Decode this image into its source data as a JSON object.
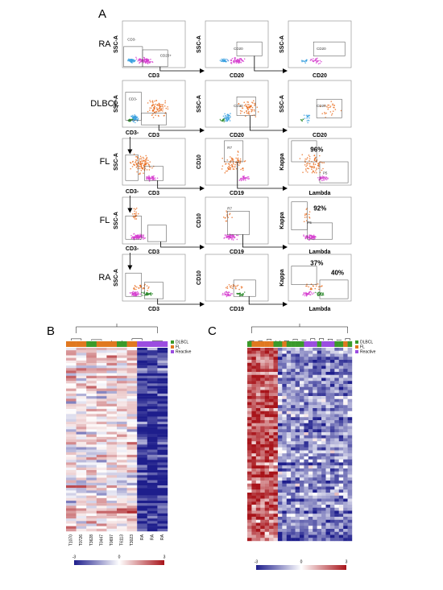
{
  "figure": {
    "panel_a": {
      "label": "A",
      "rows": [
        {
          "label": "RA",
          "plots": [
            {
              "y_axis": "SSC-A",
              "x_axis": "CD3",
              "notes": [
                "CD3-",
                "CD20+"
              ]
            },
            {
              "y_axis": "SSC-A",
              "x_axis": "CD20",
              "notes": [
                "CD20"
              ]
            },
            {
              "y_axis": "SSC-A",
              "x_axis": "CD20",
              "notes": [
                "CD20"
              ]
            }
          ]
        },
        {
          "label": "DLBCL",
          "plots": [
            {
              "y_axis": "SSC-A",
              "x_axis": "CD3",
              "notes": [
                "CD3-"
              ]
            },
            {
              "y_axis": "SSC-A",
              "x_axis": "CD20",
              "notes": [
                "CD20"
              ]
            },
            {
              "y_axis": "SSC-A",
              "x_axis": "CD20",
              "notes": [
                "CD20"
              ]
            }
          ]
        },
        {
          "label": "FL",
          "plots": [
            {
              "y_axis": "SSC-A",
              "x_axis": "CD3",
              "notes": [
                "CD3-"
              ]
            },
            {
              "y_axis": "CD10",
              "x_axis": "CD19",
              "notes": [
                "R7"
              ]
            },
            {
              "y_axis": "Kappa",
              "x_axis": "Lambda",
              "notes": [
                "96%",
                "P5"
              ]
            }
          ]
        },
        {
          "label": "FL",
          "plots": [
            {
              "y_axis": "SSC-A",
              "x_axis": "CD3",
              "notes": [
                "CD3-"
              ]
            },
            {
              "y_axis": "CD10",
              "x_axis": "CD19",
              "notes": [
                "R7"
              ]
            },
            {
              "y_axis": "Kappa",
              "x_axis": "Lambda",
              "notes": [
                "92%",
                "P5"
              ]
            }
          ]
        },
        {
          "label": "RA",
          "plots": [
            {
              "y_axis": "SSC-A",
              "x_axis": "CD3",
              "notes": [
                "CD3-"
              ]
            },
            {
              "y_axis": "CD10",
              "x_axis": "CD19",
              "notes": []
            },
            {
              "y_axis": "Kappa",
              "x_axis": "Lambda",
              "notes": [
                "37%",
                "40%"
              ]
            }
          ]
        }
      ]
    },
    "panel_b": {
      "label": "B",
      "legend": [
        "DLBCL",
        "FL",
        "Reactive"
      ],
      "columns": [
        "T1070",
        "T0726",
        "T3628",
        "T0447",
        "T0697",
        "T6113",
        "T3023",
        "RA",
        "RA",
        "RA"
      ],
      "scale": [
        "-3",
        "0",
        "3"
      ]
    },
    "panel_c": {
      "label": "C",
      "legend": [
        "DLBCL",
        "FL",
        "Reactive"
      ],
      "scale": [
        "-3",
        "0",
        "3"
      ]
    }
  }
}
